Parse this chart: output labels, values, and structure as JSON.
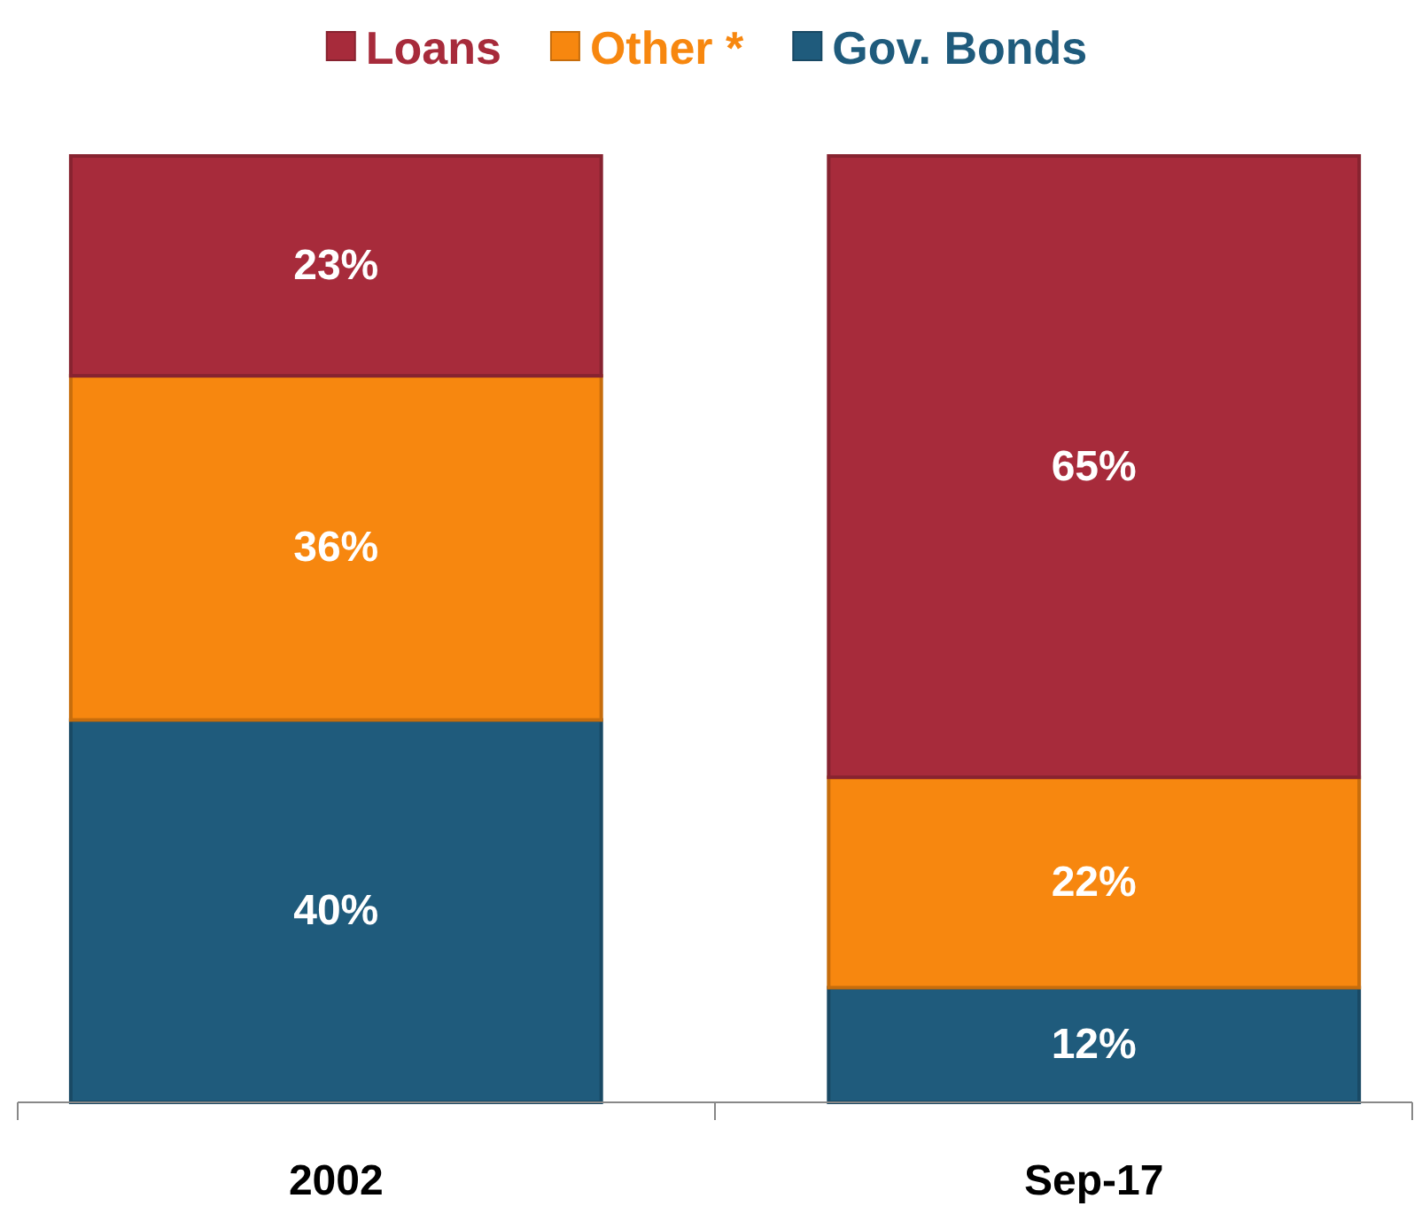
{
  "chart_data": {
    "type": "bar",
    "stacked": true,
    "categories": [
      "2002",
      "Sep-17"
    ],
    "series": [
      {
        "name": "Gov. Bonds",
        "color": "#1f5b7c",
        "values": [
          40,
          12
        ],
        "value_labels": [
          "40%",
          "12%"
        ]
      },
      {
        "name": "Other *",
        "color": "#f7870f",
        "values": [
          36,
          22
        ],
        "value_labels": [
          "36%",
          "22%"
        ]
      },
      {
        "name": "Loans",
        "color": "#a72b3b",
        "values": [
          23,
          65
        ],
        "value_labels": [
          "23%",
          "65%"
        ]
      }
    ],
    "tick_labels": "x",
    "legend": "top"
  }
}
